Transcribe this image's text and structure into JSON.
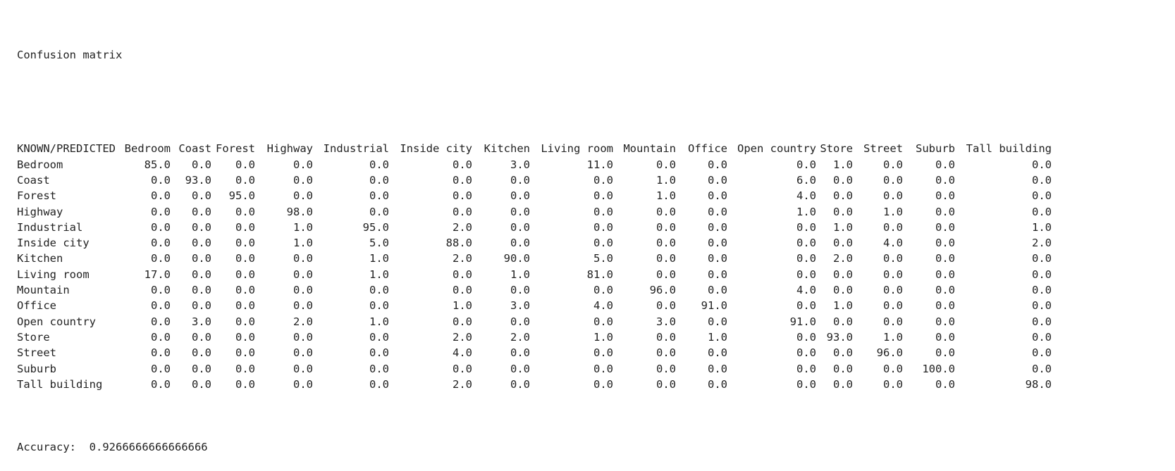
{
  "title": "Confusion matrix",
  "corner_label": "KNOWN/PREDICTED",
  "columns": [
    "Bedroom",
    "Coast",
    "Forest",
    "Highway",
    "Industrial",
    "Inside city",
    "Kitchen",
    "Living room",
    "Mountain",
    "Office",
    "Open country",
    "Store",
    "Street",
    "Suburb",
    "Tall building"
  ],
  "rows": [
    {
      "label": "Bedroom",
      "values": [
        "85.0",
        "0.0",
        "0.0",
        "0.0",
        "0.0",
        "0.0",
        "3.0",
        "11.0",
        "0.0",
        "0.0",
        "0.0",
        "1.0",
        "0.0",
        "0.0",
        "0.0"
      ]
    },
    {
      "label": "Coast",
      "values": [
        "0.0",
        "93.0",
        "0.0",
        "0.0",
        "0.0",
        "0.0",
        "0.0",
        "0.0",
        "1.0",
        "0.0",
        "6.0",
        "0.0",
        "0.0",
        "0.0",
        "0.0"
      ]
    },
    {
      "label": "Forest",
      "values": [
        "0.0",
        "0.0",
        "95.0",
        "0.0",
        "0.0",
        "0.0",
        "0.0",
        "0.0",
        "1.0",
        "0.0",
        "4.0",
        "0.0",
        "0.0",
        "0.0",
        "0.0"
      ]
    },
    {
      "label": "Highway",
      "values": [
        "0.0",
        "0.0",
        "0.0",
        "98.0",
        "0.0",
        "0.0",
        "0.0",
        "0.0",
        "0.0",
        "0.0",
        "1.0",
        "0.0",
        "1.0",
        "0.0",
        "0.0"
      ]
    },
    {
      "label": "Industrial",
      "values": [
        "0.0",
        "0.0",
        "0.0",
        "1.0",
        "95.0",
        "2.0",
        "0.0",
        "0.0",
        "0.0",
        "0.0",
        "0.0",
        "1.0",
        "0.0",
        "0.0",
        "1.0"
      ]
    },
    {
      "label": "Inside city",
      "values": [
        "0.0",
        "0.0",
        "0.0",
        "1.0",
        "5.0",
        "88.0",
        "0.0",
        "0.0",
        "0.0",
        "0.0",
        "0.0",
        "0.0",
        "4.0",
        "0.0",
        "2.0"
      ]
    },
    {
      "label": "Kitchen",
      "values": [
        "0.0",
        "0.0",
        "0.0",
        "0.0",
        "1.0",
        "2.0",
        "90.0",
        "5.0",
        "0.0",
        "0.0",
        "0.0",
        "2.0",
        "0.0",
        "0.0",
        "0.0"
      ]
    },
    {
      "label": "Living room",
      "values": [
        "17.0",
        "0.0",
        "0.0",
        "0.0",
        "1.0",
        "0.0",
        "1.0",
        "81.0",
        "0.0",
        "0.0",
        "0.0",
        "0.0",
        "0.0",
        "0.0",
        "0.0"
      ]
    },
    {
      "label": "Mountain",
      "values": [
        "0.0",
        "0.0",
        "0.0",
        "0.0",
        "0.0",
        "0.0",
        "0.0",
        "0.0",
        "96.0",
        "0.0",
        "4.0",
        "0.0",
        "0.0",
        "0.0",
        "0.0"
      ]
    },
    {
      "label": "Office",
      "values": [
        "0.0",
        "0.0",
        "0.0",
        "0.0",
        "0.0",
        "1.0",
        "3.0",
        "4.0",
        "0.0",
        "91.0",
        "0.0",
        "1.0",
        "0.0",
        "0.0",
        "0.0"
      ]
    },
    {
      "label": "Open country",
      "values": [
        "0.0",
        "3.0",
        "0.0",
        "2.0",
        "1.0",
        "0.0",
        "0.0",
        "0.0",
        "3.0",
        "0.0",
        "91.0",
        "0.0",
        "0.0",
        "0.0",
        "0.0"
      ]
    },
    {
      "label": "Store",
      "values": [
        "0.0",
        "0.0",
        "0.0",
        "0.0",
        "0.0",
        "2.0",
        "2.0",
        "1.0",
        "0.0",
        "1.0",
        "0.0",
        "93.0",
        "1.0",
        "0.0",
        "0.0"
      ]
    },
    {
      "label": "Street",
      "values": [
        "0.0",
        "0.0",
        "0.0",
        "0.0",
        "0.0",
        "4.0",
        "0.0",
        "0.0",
        "0.0",
        "0.0",
        "0.0",
        "0.0",
        "96.0",
        "0.0",
        "0.0"
      ]
    },
    {
      "label": "Suburb",
      "values": [
        "0.0",
        "0.0",
        "0.0",
        "0.0",
        "0.0",
        "0.0",
        "0.0",
        "0.0",
        "0.0",
        "0.0",
        "0.0",
        "0.0",
        "0.0",
        "100.0",
        "0.0"
      ]
    },
    {
      "label": "Tall building",
      "values": [
        "0.0",
        "0.0",
        "0.0",
        "0.0",
        "0.0",
        "2.0",
        "0.0",
        "0.0",
        "0.0",
        "0.0",
        "0.0",
        "0.0",
        "0.0",
        "0.0",
        "98.0"
      ]
    }
  ],
  "accuracy_label": "Accuracy:",
  "accuracy_value": "0.9266666666666666"
}
